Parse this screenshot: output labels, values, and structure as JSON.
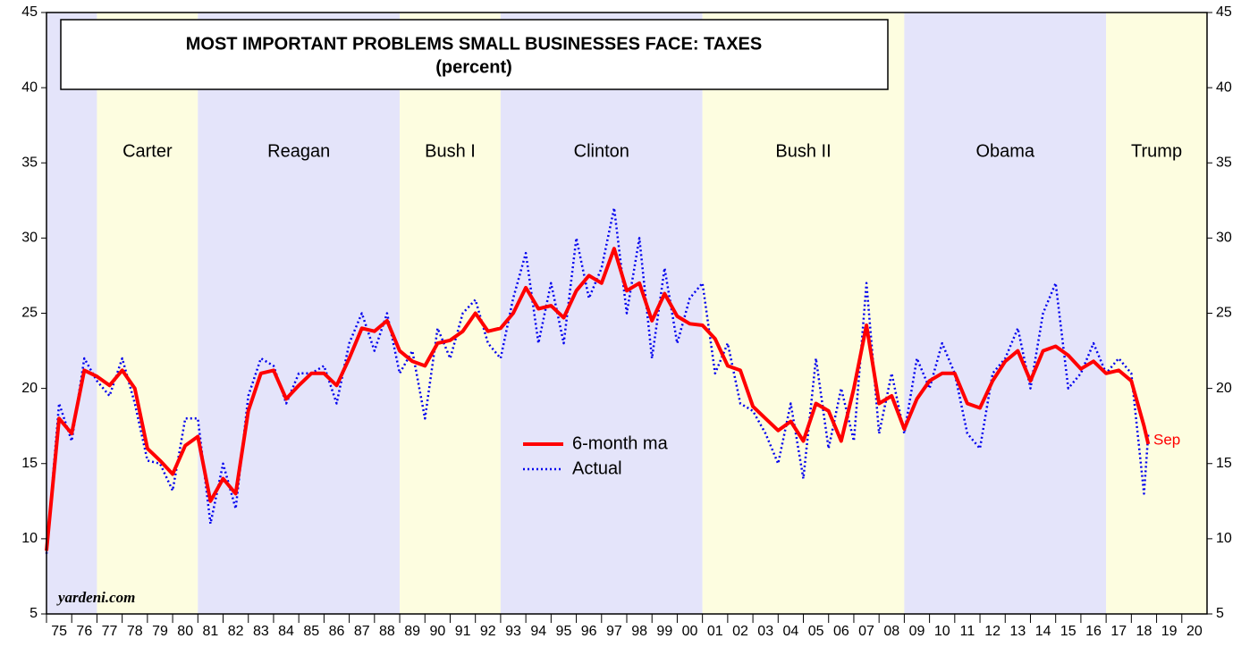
{
  "chart_data": {
    "type": "line",
    "title": "MOST IMPORTANT PROBLEMS SMALL BUSINESSES FACE: TAXES",
    "subtitle": "(percent)",
    "source": "yardeni.com",
    "annotation": "Sep",
    "xlim": [
      1975,
      2021
    ],
    "xticks": [
      {
        "value": 1975,
        "label": "75"
      },
      {
        "value": 1976,
        "label": "76"
      },
      {
        "value": 1977,
        "label": "77"
      },
      {
        "value": 1978,
        "label": "78"
      },
      {
        "value": 1979,
        "label": "79"
      },
      {
        "value": 1980,
        "label": "80"
      },
      {
        "value": 1981,
        "label": "81"
      },
      {
        "value": 1982,
        "label": "82"
      },
      {
        "value": 1983,
        "label": "83"
      },
      {
        "value": 1984,
        "label": "84"
      },
      {
        "value": 1985,
        "label": "85"
      },
      {
        "value": 1986,
        "label": "86"
      },
      {
        "value": 1987,
        "label": "87"
      },
      {
        "value": 1988,
        "label": "88"
      },
      {
        "value": 1989,
        "label": "89"
      },
      {
        "value": 1990,
        "label": "90"
      },
      {
        "value": 1991,
        "label": "91"
      },
      {
        "value": 1992,
        "label": "92"
      },
      {
        "value": 1993,
        "label": "93"
      },
      {
        "value": 1994,
        "label": "94"
      },
      {
        "value": 1995,
        "label": "95"
      },
      {
        "value": 1996,
        "label": "96"
      },
      {
        "value": 1997,
        "label": "97"
      },
      {
        "value": 1998,
        "label": "98"
      },
      {
        "value": 1999,
        "label": "99"
      },
      {
        "value": 2000,
        "label": "00"
      },
      {
        "value": 2001,
        "label": "01"
      },
      {
        "value": 2002,
        "label": "02"
      },
      {
        "value": 2003,
        "label": "03"
      },
      {
        "value": 2004,
        "label": "04"
      },
      {
        "value": 2005,
        "label": "05"
      },
      {
        "value": 2006,
        "label": "06"
      },
      {
        "value": 2007,
        "label": "07"
      },
      {
        "value": 2008,
        "label": "08"
      },
      {
        "value": 2009,
        "label": "09"
      },
      {
        "value": 2010,
        "label": "10"
      },
      {
        "value": 2011,
        "label": "11"
      },
      {
        "value": 2012,
        "label": "12"
      },
      {
        "value": 2013,
        "label": "13"
      },
      {
        "value": 2014,
        "label": "14"
      },
      {
        "value": 2015,
        "label": "15"
      },
      {
        "value": 2016,
        "label": "16"
      },
      {
        "value": 2017,
        "label": "17"
      },
      {
        "value": 2018,
        "label": "18"
      },
      {
        "value": 2019,
        "label": "19"
      },
      {
        "value": 2020,
        "label": "20"
      }
    ],
    "ylim": [
      5,
      45
    ],
    "yticks": [
      5,
      10,
      15,
      20,
      25,
      30,
      35,
      40,
      45
    ],
    "regions": [
      {
        "start": 1975,
        "end": 1977,
        "color": "#e4e4fa"
      },
      {
        "name": "Carter",
        "start": 1977,
        "end": 1981,
        "color": "#fdfde0"
      },
      {
        "name": "Reagan",
        "start": 1981,
        "end": 1989,
        "color": "#e4e4fa"
      },
      {
        "name": "Bush I",
        "start": 1989,
        "end": 1993,
        "color": "#fdfde0"
      },
      {
        "name": "Clinton",
        "start": 1993,
        "end": 2001,
        "color": "#e4e4fa"
      },
      {
        "name": "Bush II",
        "start": 2001,
        "end": 2009,
        "color": "#fdfde0"
      },
      {
        "name": "Obama",
        "start": 2009,
        "end": 2017,
        "color": "#e4e4fa"
      },
      {
        "name": "Trump",
        "start": 2017,
        "end": 2021,
        "color": "#fdfde0"
      }
    ],
    "x": [
      1975,
      1975.5,
      1976,
      1976.5,
      1977,
      1977.5,
      1978,
      1978.5,
      1979,
      1979.5,
      1980,
      1980.5,
      1981,
      1981.5,
      1982,
      1982.5,
      1983,
      1983.5,
      1984,
      1984.5,
      1985,
      1985.5,
      1986,
      1986.5,
      1987,
      1987.5,
      1988,
      1988.5,
      1989,
      1989.5,
      1990,
      1990.5,
      1991,
      1991.5,
      1992,
      1992.5,
      1993,
      1993.5,
      1994,
      1994.5,
      1995,
      1995.5,
      1996,
      1996.5,
      1997,
      1997.5,
      1998,
      1998.5,
      1999,
      1999.5,
      2000,
      2000.5,
      2001,
      2001.5,
      2002,
      2002.5,
      2003,
      2003.5,
      2004,
      2004.5,
      2005,
      2005.5,
      2006,
      2006.5,
      2007,
      2007.5,
      2008,
      2008.5,
      2009,
      2009.5,
      2010,
      2010.5,
      2011,
      2011.5,
      2012,
      2012.5,
      2013,
      2013.5,
      2014,
      2014.5,
      2015,
      2015.5,
      2016,
      2016.5,
      2017,
      2017.5,
      2018,
      2018.5,
      2018.67
    ],
    "series": [
      {
        "name": "6-month ma",
        "color": "#ff0000",
        "style": "solid",
        "values": [
          9.2,
          18,
          17,
          21.2,
          20.8,
          20.2,
          21.2,
          20,
          16,
          15.2,
          14.3,
          16.2,
          16.8,
          12.5,
          14,
          13,
          18.5,
          21,
          21.2,
          19.3,
          20.2,
          21,
          21,
          20.2,
          22,
          24,
          23.8,
          24.5,
          22.5,
          21.8,
          21.5,
          23,
          23.2,
          23.8,
          25,
          23.8,
          24,
          25,
          26.7,
          25.3,
          25.5,
          24.7,
          26.5,
          27.5,
          27,
          29.3,
          26.5,
          27,
          24.5,
          26.3,
          24.8,
          24.3,
          24.2,
          23.3,
          21.5,
          21.2,
          18.8,
          18,
          17.2,
          17.8,
          16.5,
          19,
          18.5,
          16.5,
          20,
          24.2,
          19,
          19.5,
          17.3,
          19.3,
          20.5,
          21,
          21,
          19,
          18.7,
          20.5,
          21.8,
          22.5,
          20.5,
          22.5,
          22.8,
          22.2,
          21.3,
          21.8,
          21,
          21.2,
          20.5,
          17.5,
          16.3
        ]
      },
      {
        "name": "Actual",
        "color": "#0000ee",
        "style": "dotted",
        "values": [
          9,
          19,
          16.5,
          22,
          20.5,
          19.5,
          22,
          19,
          15.2,
          15,
          13.2,
          18,
          18,
          11,
          15,
          12,
          19.5,
          22,
          21.5,
          19,
          21,
          21,
          21.5,
          19,
          23,
          25,
          22.5,
          25,
          21,
          22.5,
          18,
          24,
          22,
          25,
          25.9,
          23,
          22,
          26,
          29,
          23,
          27,
          23,
          30,
          26,
          28,
          32,
          25,
          30,
          22,
          28,
          23,
          26,
          27,
          21,
          23,
          19,
          18.5,
          17,
          15,
          19,
          14,
          22,
          16,
          20,
          16.5,
          27,
          17,
          21,
          17,
          22,
          20,
          23,
          21,
          17,
          16,
          21,
          22,
          24,
          20,
          25,
          27,
          20,
          21,
          23,
          21,
          22,
          21,
          13,
          17
        ]
      }
    ]
  }
}
